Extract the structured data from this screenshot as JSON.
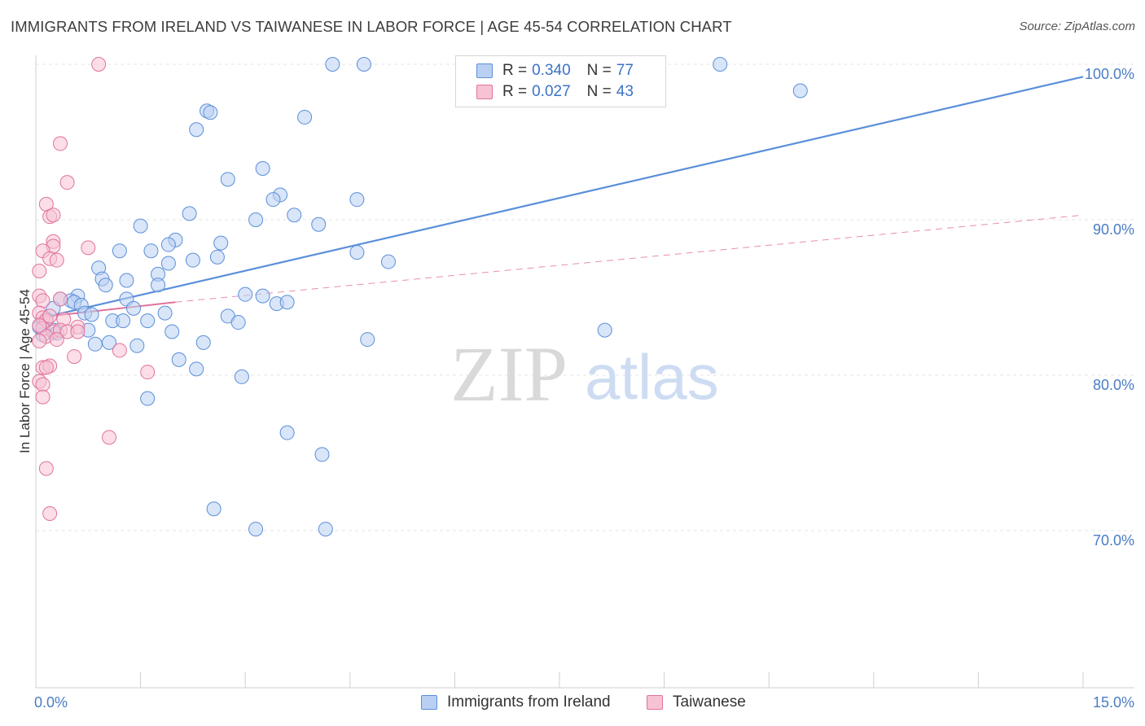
{
  "title": "IMMIGRANTS FROM IRELAND VS TAIWANESE IN LABOR FORCE | AGE 45-54 CORRELATION CHART",
  "source": "Source: ZipAtlas.com",
  "watermark": {
    "zip": "ZIP",
    "atlas": "atlas"
  },
  "legend": [
    {
      "r_label": "R =",
      "r_value": "0.340",
      "n_label": "N =",
      "n_value": "77",
      "color": "#5b8fd9",
      "fill": "#b9d0f2"
    },
    {
      "r_label": "R =",
      "r_value": "0.027",
      "n_label": "N =",
      "n_value": "43",
      "color": "#e0739b",
      "fill": "#f7c2d3"
    }
  ],
  "chart_data": {
    "type": "scatter",
    "title": "IMMIGRANTS FROM IRELAND VS TAIWANESE IN LABOR FORCE | AGE 45-54 CORRELATION CHART",
    "xlabel": "",
    "ylabel": "In Labor Force | Age 45-54",
    "xlim": [
      0,
      15
    ],
    "ylim": [
      61,
      101
    ],
    "x_tick_labels": [
      {
        "value": 0,
        "label": "0.0%"
      },
      {
        "value": 15,
        "label": "15.0%"
      }
    ],
    "y_tick_labels": [
      {
        "value": 100,
        "label": "100.0%"
      },
      {
        "value": 90,
        "label": "90.0%"
      },
      {
        "value": 80,
        "label": "80.0%"
      },
      {
        "value": 70,
        "label": "70.0%"
      }
    ],
    "grid": true,
    "legend_position": "top-center",
    "series": [
      {
        "name": "Immigrants from Ireland",
        "color": "#5b8fd9",
        "fill": "#b9d0f2",
        "trend": {
          "x": [
            0,
            15
          ],
          "y": [
            83.6,
            99.2
          ],
          "style": "solid"
        },
        "points": [
          [
            4.25,
            100.0
          ],
          [
            4.7,
            100.0
          ],
          [
            9.8,
            100.0
          ],
          [
            10.95,
            98.3
          ],
          [
            2.45,
            97.0
          ],
          [
            2.5,
            96.9
          ],
          [
            3.85,
            96.6
          ],
          [
            2.3,
            95.8
          ],
          [
            3.25,
            93.3
          ],
          [
            2.75,
            92.6
          ],
          [
            3.5,
            91.6
          ],
          [
            3.4,
            91.3
          ],
          [
            4.6,
            91.3
          ],
          [
            2.2,
            90.4
          ],
          [
            3.7,
            90.3
          ],
          [
            3.15,
            90.0
          ],
          [
            1.5,
            89.6
          ],
          [
            4.05,
            89.7
          ],
          [
            2.0,
            88.7
          ],
          [
            2.65,
            88.5
          ],
          [
            1.9,
            88.4
          ],
          [
            1.2,
            88.0
          ],
          [
            1.65,
            88.0
          ],
          [
            4.6,
            87.9
          ],
          [
            2.6,
            87.6
          ],
          [
            2.25,
            87.4
          ],
          [
            1.9,
            87.2
          ],
          [
            5.05,
            87.3
          ],
          [
            0.9,
            86.9
          ],
          [
            1.75,
            86.5
          ],
          [
            0.95,
            86.2
          ],
          [
            1.3,
            86.1
          ],
          [
            1.0,
            85.8
          ],
          [
            1.75,
            85.8
          ],
          [
            0.6,
            85.1
          ],
          [
            3.0,
            85.2
          ],
          [
            3.25,
            85.1
          ],
          [
            1.3,
            84.9
          ],
          [
            0.35,
            84.9
          ],
          [
            0.5,
            84.8
          ],
          [
            0.55,
            84.7
          ],
          [
            3.45,
            84.6
          ],
          [
            3.6,
            84.7
          ],
          [
            0.65,
            84.5
          ],
          [
            0.25,
            84.3
          ],
          [
            1.4,
            84.3
          ],
          [
            0.7,
            84.0
          ],
          [
            0.8,
            83.9
          ],
          [
            1.85,
            84.0
          ],
          [
            2.75,
            83.8
          ],
          [
            1.1,
            83.5
          ],
          [
            1.25,
            83.5
          ],
          [
            1.6,
            83.5
          ],
          [
            2.9,
            83.4
          ],
          [
            0.1,
            83.2
          ],
          [
            0.25,
            82.9
          ],
          [
            0.75,
            82.9
          ],
          [
            1.95,
            82.8
          ],
          [
            8.15,
            82.9
          ],
          [
            4.75,
            82.3
          ],
          [
            0.85,
            82.0
          ],
          [
            1.05,
            82.1
          ],
          [
            1.45,
            81.9
          ],
          [
            2.4,
            82.1
          ],
          [
            0.1,
            82.6
          ],
          [
            0.05,
            83.1
          ],
          [
            2.05,
            81.0
          ],
          [
            2.3,
            80.4
          ],
          [
            2.95,
            79.9
          ],
          [
            1.6,
            78.5
          ],
          [
            3.6,
            76.3
          ],
          [
            4.1,
            74.9
          ],
          [
            2.55,
            71.4
          ],
          [
            3.15,
            70.1
          ],
          [
            4.15,
            70.1
          ],
          [
            0.15,
            83.6
          ],
          [
            0.3,
            82.7
          ]
        ]
      },
      {
        "name": "Taiwanese",
        "color": "#e0739b",
        "fill": "#f7c2d3",
        "trend": {
          "x": [
            0,
            2.0
          ],
          "y": [
            83.7,
            84.7
          ],
          "style": "solid",
          "extended": {
            "x": [
              2.0,
              15
            ],
            "y": [
              84.7,
              90.3
            ],
            "style": "dashed"
          }
        },
        "points": [
          [
            0.9,
            100.0
          ],
          [
            0.35,
            94.9
          ],
          [
            0.45,
            92.4
          ],
          [
            0.15,
            91.0
          ],
          [
            0.2,
            90.2
          ],
          [
            0.25,
            90.3
          ],
          [
            0.25,
            88.6
          ],
          [
            0.25,
            88.3
          ],
          [
            0.1,
            88.0
          ],
          [
            0.75,
            88.2
          ],
          [
            0.2,
            87.5
          ],
          [
            0.3,
            87.4
          ],
          [
            0.05,
            86.7
          ],
          [
            0.05,
            85.1
          ],
          [
            0.1,
            84.8
          ],
          [
            0.35,
            84.9
          ],
          [
            0.05,
            84.0
          ],
          [
            0.1,
            83.7
          ],
          [
            0.15,
            83.5
          ],
          [
            0.2,
            83.8
          ],
          [
            0.4,
            83.6
          ],
          [
            0.6,
            83.1
          ],
          [
            0.1,
            83.0
          ],
          [
            0.25,
            82.8
          ],
          [
            0.35,
            82.9
          ],
          [
            0.45,
            82.8
          ],
          [
            0.6,
            82.8
          ],
          [
            0.15,
            82.5
          ],
          [
            0.3,
            82.3
          ],
          [
            0.05,
            82.2
          ],
          [
            0.55,
            81.2
          ],
          [
            1.2,
            81.6
          ],
          [
            0.1,
            80.5
          ],
          [
            0.2,
            80.6
          ],
          [
            0.15,
            80.5
          ],
          [
            1.6,
            80.2
          ],
          [
            0.05,
            79.6
          ],
          [
            0.1,
            79.4
          ],
          [
            0.1,
            78.6
          ],
          [
            1.05,
            76.0
          ],
          [
            0.15,
            74.0
          ],
          [
            0.2,
            71.1
          ],
          [
            0.05,
            83.2
          ]
        ]
      }
    ]
  }
}
